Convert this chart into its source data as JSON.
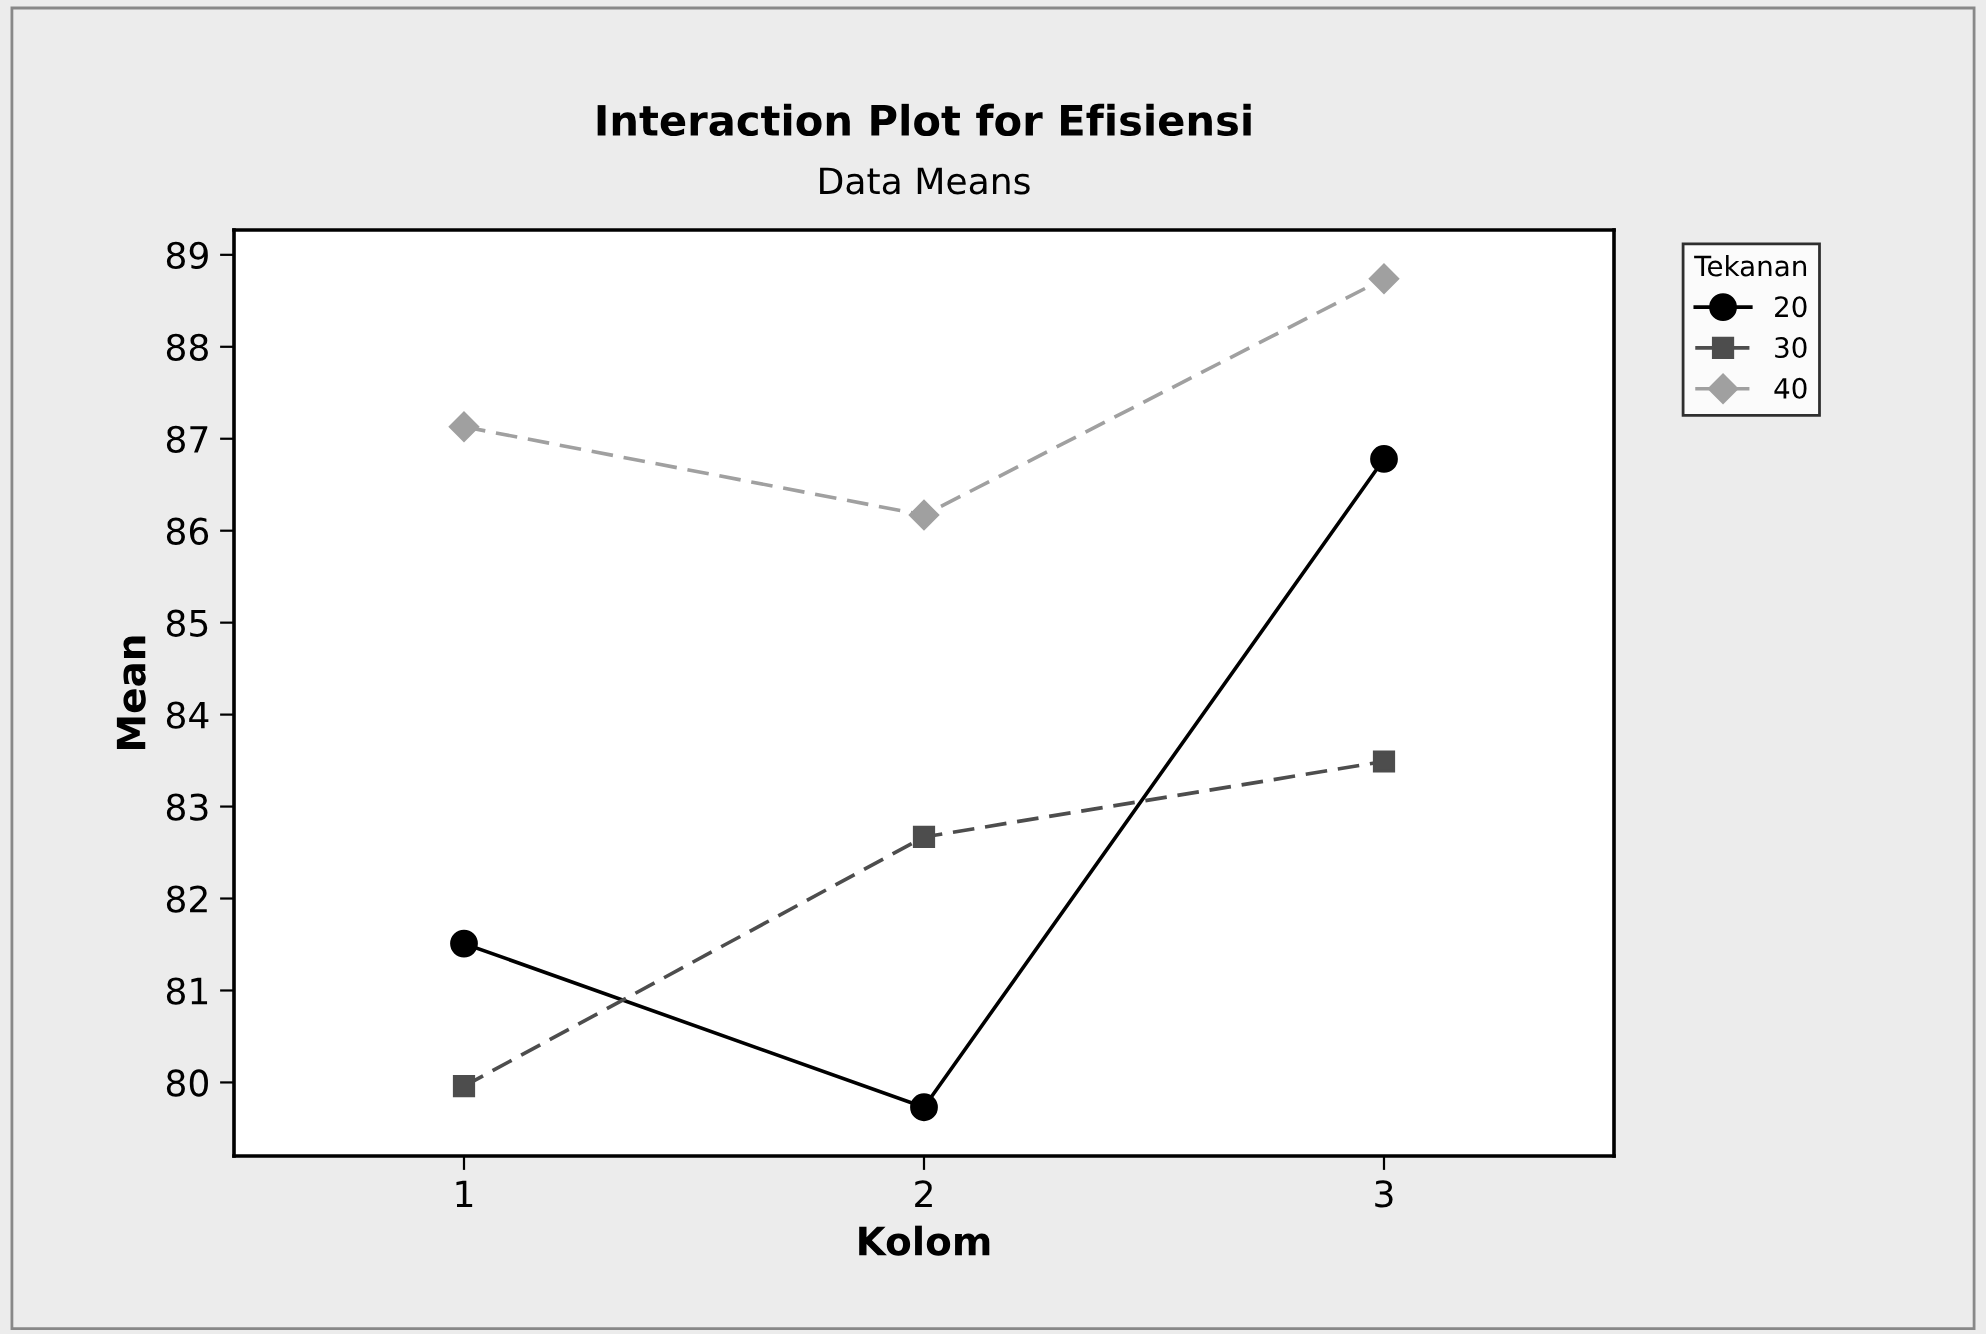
{
  "chart_data": {
    "type": "line",
    "title": "Interaction Plot for Efisiensi",
    "subtitle": "Data Means",
    "xlabel": "Kolom",
    "ylabel": "Mean",
    "legend_title": "Tekanan",
    "x": [
      1,
      2,
      3
    ],
    "xlim": [
      0.5,
      3.5
    ],
    "xticks": [
      1,
      2,
      3
    ],
    "ylim": [
      79.2,
      89.27
    ],
    "yticks": [
      80,
      81,
      82,
      83,
      84,
      85,
      86,
      87,
      88,
      89
    ],
    "series": [
      {
        "name": "20",
        "color": "#000000",
        "marker": "circle",
        "line_style": "solid",
        "values": [
          81.51,
          79.73,
          86.78
        ]
      },
      {
        "name": "30",
        "color": "#4d4d4d",
        "marker": "square",
        "line_style": "dashed",
        "values": [
          79.96,
          82.67,
          83.49
        ]
      },
      {
        "name": "40",
        "color": "#a0a0a0",
        "marker": "diamond",
        "line_style": "dashed",
        "values": [
          87.13,
          86.17,
          88.74
        ]
      }
    ],
    "grid": false,
    "legend": "top right"
  }
}
